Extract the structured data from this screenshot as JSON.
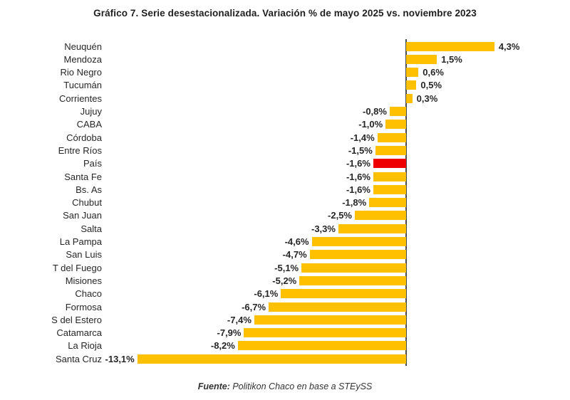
{
  "title": "Gráfico 7. Serie desestacionalizada. Variación % de mayo 2025 vs. noviembre 2023",
  "source": {
    "prefix": "Fuente:",
    "text": " Politikon Chaco en base a STEySS"
  },
  "chart_data": {
    "type": "bar",
    "orientation": "horizontal",
    "title": "Gráfico 7. Serie desestacionalizada. Variación % de mayo 2025 vs. noviembre 2023",
    "xlabel": "",
    "ylabel": "",
    "xlim": [
      -14,
      5
    ],
    "grid": false,
    "legend": false,
    "categories": [
      "Neuquén",
      "Mendoza",
      "Rio Negro",
      "Tucumán",
      "Corrientes",
      "Jujuy",
      "CABA",
      "Córdoba",
      "Entre Ríos",
      "País",
      "Santa Fe",
      "Bs. As",
      "Chubut",
      "San Juan",
      "Salta",
      "La Pampa",
      "San Luis",
      "T del Fuego",
      "Misiones",
      "Chaco",
      "Formosa",
      "S del Estero",
      "Catamarca",
      "La Rioja",
      "Santa Cruz"
    ],
    "values": [
      4.3,
      1.5,
      0.6,
      0.5,
      0.3,
      -0.8,
      -1.0,
      -1.4,
      -1.5,
      -1.6,
      -1.6,
      -1.6,
      -1.8,
      -2.5,
      -3.3,
      -4.6,
      -4.7,
      -5.1,
      -5.2,
      -6.1,
      -6.7,
      -7.4,
      -7.9,
      -8.2,
      -13.1
    ],
    "value_labels": [
      "4,3%",
      "1,5%",
      "0,6%",
      "0,5%",
      "0,3%",
      "-0,8%",
      "-1,0%",
      "-1,4%",
      "-1,5%",
      "-1,6%",
      "-1,6%",
      "-1,6%",
      "-1,8%",
      "-2,5%",
      "-3,3%",
      "-4,6%",
      "-4,7%",
      "-5,1%",
      "-5,2%",
      "-6,1%",
      "-6,7%",
      "-7,4%",
      "-7,9%",
      "-8,2%",
      "-13,1%"
    ],
    "highlight_category": "País",
    "highlight_index": 9,
    "bar_color": "#FFC000",
    "highlight_color": "#EE0000",
    "axis_color": "#4D4D4D"
  }
}
